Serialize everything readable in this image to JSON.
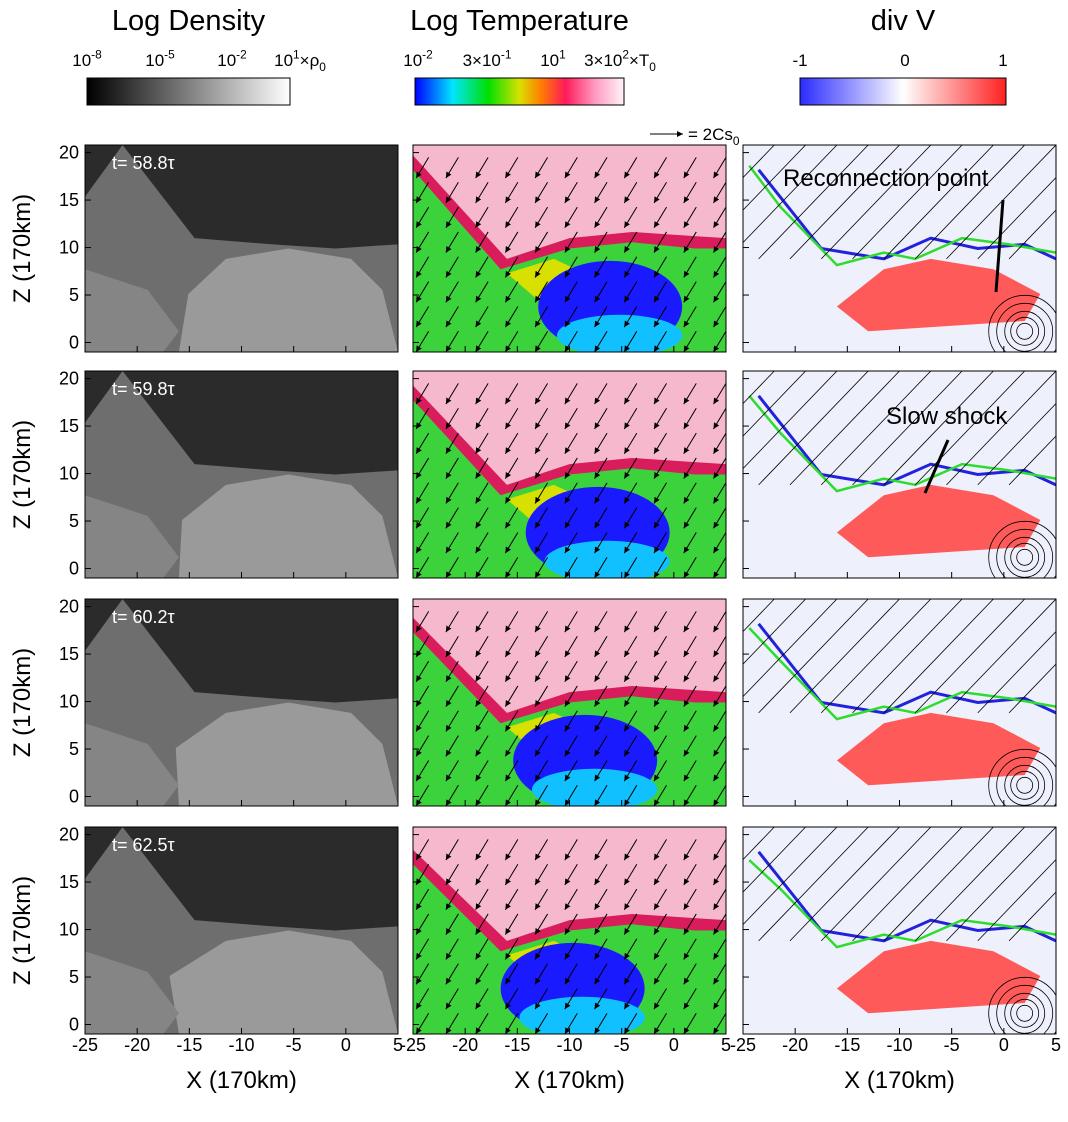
{
  "colorbars": [
    {
      "title": "Log Density",
      "labels": [
        [
          {
            "t": "10"
          },
          {
            "sup": "-8"
          }
        ],
        [
          {
            "t": "10"
          },
          {
            "sup": "-5"
          }
        ],
        [
          {
            "t": "10"
          },
          {
            "sup": "-2"
          }
        ],
        [
          {
            "t": "10"
          },
          {
            "sup": "1"
          },
          {
            "t": "×ρ"
          },
          {
            "sub": "0"
          }
        ]
      ]
    },
    {
      "title": "Log Temperature",
      "labels": [
        [
          {
            "t": "10"
          },
          {
            "sup": "-2"
          }
        ],
        [
          {
            "t": "3×10"
          },
          {
            "sup": "-1"
          }
        ],
        [
          {
            "t": "10"
          },
          {
            "sup": "1"
          }
        ],
        [
          {
            "t": "3×10"
          },
          {
            "sup": "2"
          },
          {
            "t": "×T"
          },
          {
            "sub": "0"
          }
        ]
      ]
    },
    {
      "title": "div V",
      "labels": [
        [
          {
            "t": "-1"
          }
        ],
        [
          {
            "t": "0"
          }
        ],
        [
          {
            "t": "1"
          }
        ]
      ]
    }
  ],
  "axes": {
    "xticks": [
      -25,
      -20,
      -15,
      -10,
      -5,
      0,
      5
    ],
    "yticks": [
      0,
      5,
      10,
      15,
      20
    ],
    "xlim": [
      -25,
      5
    ],
    "ylim": [
      -1,
      20.8
    ],
    "xlabel": "X (170km)",
    "ylabel": "Z (170km)"
  },
  "times": [
    "t= 58.8τ",
    "t= 59.8τ",
    "t= 60.2τ",
    "t= 62.5τ"
  ],
  "annotations": {
    "reconnection": "Reconnection point",
    "slow_shock": "Slow shock",
    "velocity_scale": [
      {
        "t": "= 2Cs"
      },
      {
        "sub": "0"
      }
    ]
  }
}
